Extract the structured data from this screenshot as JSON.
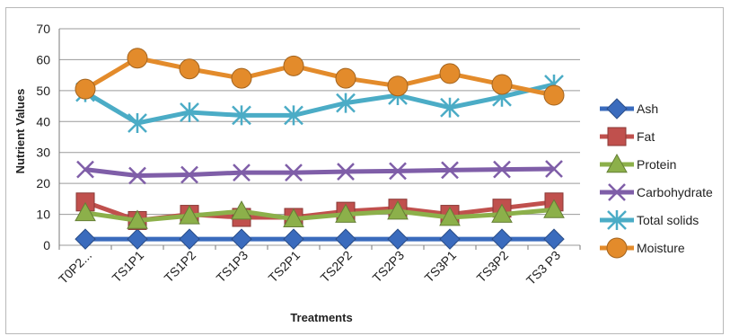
{
  "chart_data": {
    "type": "line",
    "categories": [
      "T0P2...",
      "TS1P1",
      "TS1P2",
      "TS1P3",
      "TS2P1",
      "TS2P2",
      "TS2P3",
      "TS3P1",
      "TS3P2",
      "TS3 P3"
    ],
    "series": [
      {
        "name": "Ash",
        "values": [
          2,
          2,
          2,
          2,
          2,
          2,
          2,
          2,
          2,
          2
        ],
        "color": "#3a6bbd",
        "marker": "diamond"
      },
      {
        "name": "Fat",
        "values": [
          14,
          8,
          10,
          9,
          9,
          11,
          12,
          10,
          12,
          14
        ],
        "color": "#c0504d",
        "marker": "square"
      },
      {
        "name": "Protein",
        "values": [
          10.5,
          8,
          9.5,
          11,
          8.5,
          10,
          11,
          9,
          10,
          11.5
        ],
        "color": "#8cb04a",
        "marker": "triangle"
      },
      {
        "name": "Carbohydrate",
        "values": [
          24.5,
          22.5,
          22.8,
          23.5,
          23.5,
          23.8,
          24,
          24.3,
          24.5,
          24.7
        ],
        "color": "#7f5ea8",
        "marker": "x"
      },
      {
        "name": "Total solids",
        "values": [
          49.5,
          39.5,
          43,
          42,
          42,
          46,
          48.5,
          44.5,
          48,
          52
        ],
        "color": "#4bacc6",
        "marker": "star"
      },
      {
        "name": "Moisture",
        "values": [
          50.5,
          60.5,
          57,
          54,
          58,
          54,
          51.5,
          55.5,
          52,
          48.5
        ],
        "color": "#e38b2b",
        "marker": "circle"
      }
    ],
    "xlabel": "Treatments",
    "ylabel": "Nutrient Values",
    "ylim": [
      0,
      70
    ],
    "yticks": [
      0,
      10,
      20,
      30,
      40,
      50,
      60,
      70
    ],
    "grid": true,
    "legend": "right"
  }
}
